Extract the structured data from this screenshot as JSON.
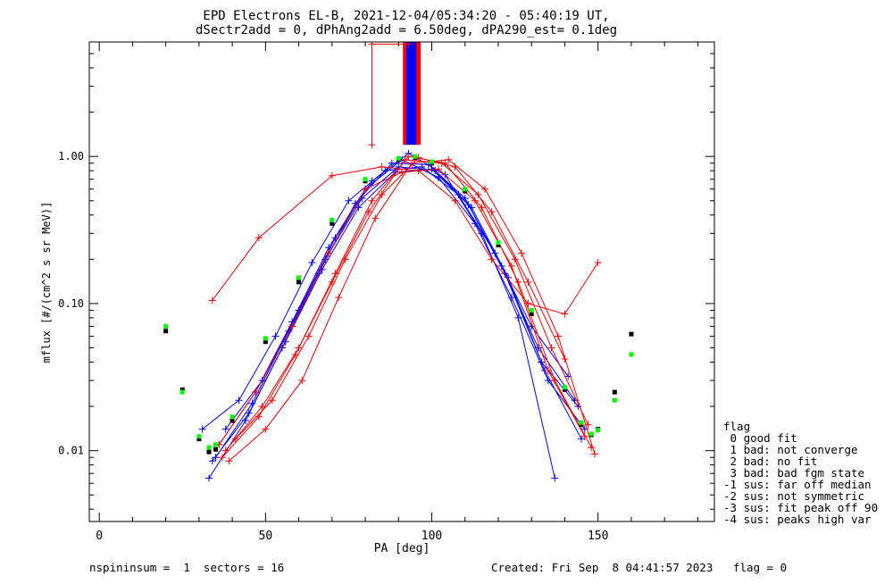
{
  "title_line1": "EPD Electrons EL-B, 2021-12-04/05:34:20 - 05:40:19 UT,",
  "title_line2": "dSectr2add = 0, dPhAng2add = 6.50deg, dPA290_est=   0.1deg",
  "footer_left": "nspininsum =  1  sectors = 16",
  "footer_right": "Created: Fri Sep  8 04:41:57 2023   flag = 0",
  "legend": {
    "title": "flag",
    "items": [
      " 0 good fit",
      " 1 bad: not converge",
      " 2 bad: no fit",
      " 3 bad: bad fgm state",
      "-1 sus: far off median",
      "-2 sus: not symmetric",
      "-3 sus: fit peak off 90",
      "-4 sus: peaks high var"
    ]
  },
  "colors": {
    "red": "#ff0000",
    "blue": "#0000ff",
    "green": "#00ff00",
    "black": "#000000"
  },
  "chart_data": {
    "type": "line",
    "xlabel": "PA [deg]",
    "ylabel": "mflux [#/(cm^2 s sr MeV)]",
    "xlim": [
      -3,
      185
    ],
    "ylim": [
      0.0033,
      6.0
    ],
    "yscale": "log",
    "xticks": [
      0,
      50,
      100,
      150
    ],
    "xtick_labels": [
      "0",
      "50",
      "100",
      "150"
    ],
    "yticks": [
      0.01,
      0.1,
      1.0
    ],
    "ytick_labels": [
      "0.01",
      "0.10",
      "1.00"
    ],
    "grid": false,
    "legend_position": "right-bottom outside",
    "series": [
      {
        "color": "blue",
        "marker": "+",
        "x": [
          34,
          45,
          56,
          67,
          78,
          89,
          100,
          111,
          122,
          133,
          144
        ],
        "y": [
          0.0085,
          0.018,
          0.055,
          0.17,
          0.45,
          0.78,
          0.82,
          0.47,
          0.16,
          0.04,
          0.02
        ]
      },
      {
        "color": "blue",
        "marker": "+",
        "x": [
          36,
          47,
          58,
          69,
          80,
          91,
          102,
          113,
          124,
          135,
          146
        ],
        "y": [
          0.011,
          0.025,
          0.075,
          0.24,
          0.6,
          0.95,
          0.72,
          0.35,
          0.11,
          0.03,
          0.014
        ]
      },
      {
        "color": "blue",
        "marker": "+",
        "x": [
          33,
          44,
          55,
          66,
          77,
          88,
          99,
          110,
          121,
          132,
          143
        ],
        "y": [
          0.0065,
          0.016,
          0.05,
          0.16,
          0.48,
          0.9,
          0.88,
          0.52,
          0.18,
          0.05,
          0.022
        ]
      },
      {
        "color": "blue",
        "marker": "+",
        "x": [
          38,
          49,
          60,
          71,
          82,
          93,
          104,
          115,
          126,
          137
        ],
        "y": [
          0.014,
          0.03,
          0.09,
          0.28,
          0.68,
          1.05,
          0.75,
          0.3,
          0.08,
          0.0065
        ]
      },
      {
        "color": "blue",
        "marker": "+",
        "x": [
          31,
          42,
          53,
          64,
          75,
          86,
          97,
          108,
          119,
          130,
          141
        ],
        "y": [
          0.014,
          0.022,
          0.06,
          0.19,
          0.5,
          0.8,
          0.85,
          0.55,
          0.22,
          0.07,
          0.032
        ]
      },
      {
        "color": "blue",
        "marker": "+",
        "x": [
          35,
          46,
          57,
          68,
          79,
          90,
          101,
          112,
          123,
          134,
          145
        ],
        "y": [
          0.009,
          0.021,
          0.065,
          0.2,
          0.52,
          0.85,
          0.8,
          0.45,
          0.15,
          0.035,
          0.012
        ]
      },
      {
        "color": "red",
        "marker": "+",
        "x": [
          34,
          48,
          70,
          85,
          96,
          107,
          118,
          129,
          140,
          150
        ],
        "y": [
          0.105,
          0.28,
          0.74,
          0.85,
          0.8,
          0.5,
          0.2,
          0.1,
          0.085,
          0.19
        ]
      },
      {
        "color": "red",
        "marker": "+",
        "x": [
          37,
          48,
          59,
          70,
          81,
          92,
          103,
          114,
          125,
          136,
          147
        ],
        "y": [
          0.009,
          0.017,
          0.045,
          0.14,
          0.42,
          0.95,
          0.9,
          0.55,
          0.2,
          0.05,
          0.015
        ]
      },
      {
        "color": "red",
        "marker": "+",
        "x": [
          39,
          50,
          61,
          72,
          83,
          94,
          105,
          116,
          127,
          138,
          149
        ],
        "y": [
          0.0085,
          0.014,
          0.03,
          0.11,
          0.38,
          0.9,
          0.95,
          0.6,
          0.22,
          0.06,
          0.0095
        ]
      },
      {
        "color": "red",
        "marker": "+",
        "x": [
          38,
          49,
          60,
          71,
          82,
          93,
          104,
          115,
          126,
          137,
          148
        ],
        "y": [
          0.01,
          0.02,
          0.05,
          0.16,
          0.5,
          1.0,
          0.9,
          0.45,
          0.14,
          0.03,
          0.0105
        ]
      },
      {
        "color": "red",
        "marker": "+",
        "x": [
          41,
          52,
          63,
          74,
          85,
          96,
          107,
          118,
          129,
          140
        ],
        "y": [
          0.012,
          0.022,
          0.06,
          0.2,
          0.55,
          0.98,
          0.85,
          0.42,
          0.14,
          0.042
        ]
      },
      {
        "color": "red",
        "marker": "+",
        "x": [
          36,
          47,
          58,
          69,
          80,
          91,
          102,
          113,
          124,
          135,
          146
        ],
        "y": [
          0.011,
          0.025,
          0.07,
          0.22,
          0.6,
          0.78,
          0.82,
          0.5,
          0.18,
          0.035,
          0.0125
        ]
      },
      {
        "color": "red",
        "marker": "+",
        "x": [
          82,
          82,
          93
        ],
        "y": [
          1.2,
          5.8,
          5.8
        ]
      },
      {
        "color": "black",
        "marker": "dot",
        "x": [
          20,
          25,
          30,
          33,
          35,
          40,
          50,
          60,
          70,
          80,
          90,
          95,
          100,
          110,
          120,
          130,
          140,
          145,
          148,
          150,
          155,
          160
        ],
        "y": [
          0.065,
          0.026,
          0.012,
          0.0098,
          0.0102,
          0.016,
          0.055,
          0.14,
          0.35,
          0.68,
          0.95,
          0.98,
          0.9,
          0.58,
          0.25,
          0.085,
          0.026,
          0.015,
          0.0128,
          0.014,
          0.025,
          0.062
        ]
      },
      {
        "color": "green",
        "marker": "dot",
        "x": [
          20,
          25,
          30,
          33,
          35,
          40,
          50,
          60,
          70,
          80,
          90,
          95,
          100,
          110,
          120,
          130,
          140,
          145,
          148,
          150,
          155,
          160
        ],
        "y": [
          0.07,
          0.025,
          0.0125,
          0.0105,
          0.011,
          0.017,
          0.058,
          0.15,
          0.37,
          0.7,
          0.97,
          1.0,
          0.92,
          0.6,
          0.26,
          0.09,
          0.027,
          0.0155,
          0.013,
          0.0138,
          0.022,
          0.045
        ]
      }
    ],
    "vertical_bars": {
      "x": [
        92,
        93,
        94,
        95,
        96
      ],
      "y_from": 1.2,
      "y_to": 6.0,
      "colors": [
        "red",
        "blue",
        "blue",
        "blue",
        "red"
      ]
    }
  }
}
